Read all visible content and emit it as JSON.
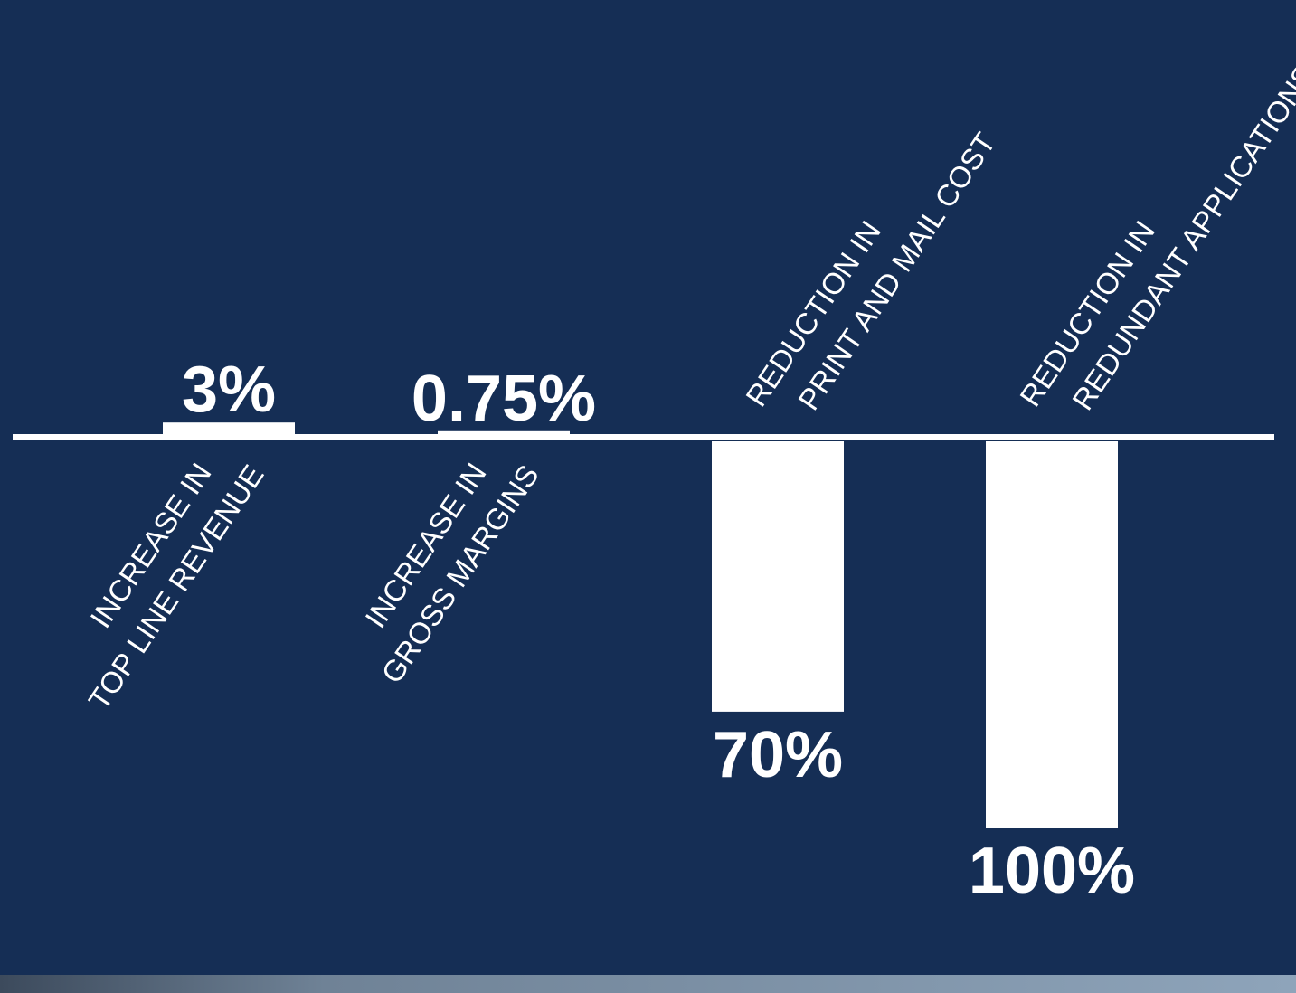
{
  "chart_data": {
    "type": "bar",
    "categories": [
      [
        "INCREASE IN",
        "TOP LINE REVENUE"
      ],
      [
        "INCREASE IN",
        "GROSS MARGINS"
      ],
      [
        "REDUCTION IN",
        "PRINT AND MAIL COST"
      ],
      [
        "REDUCTION IN",
        "REDUNDANT APPLICATIONS"
      ]
    ],
    "values": [
      3,
      0.75,
      -70,
      -100
    ],
    "value_labels": [
      "3%",
      "0.75%",
      "70%",
      "100%"
    ],
    "color": "#ffffff"
  }
}
